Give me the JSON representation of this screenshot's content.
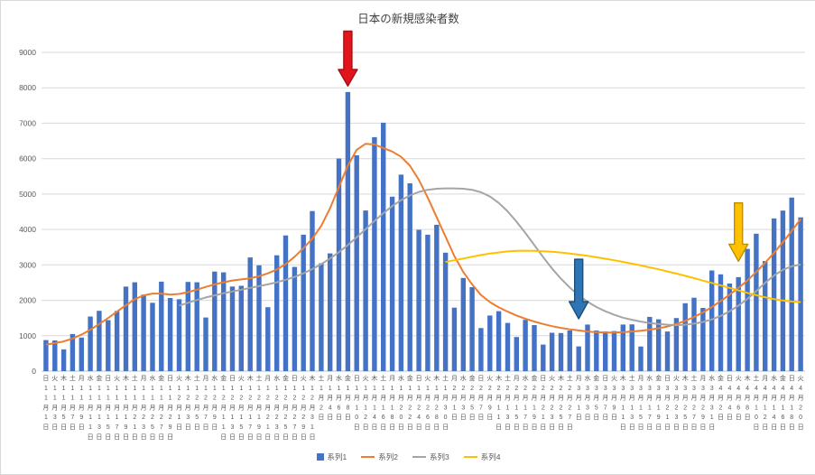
{
  "title": "日本の新規感染者数",
  "colors": {
    "bar": "#4472C4",
    "series2": "#ED7D31",
    "series3": "#A5A5A5",
    "series4": "#FFC000",
    "grid": "#D9D9D9",
    "axis_line": "#BFBFBF",
    "text": "#595959",
    "title_text": "#404040"
  },
  "y_axis": {
    "min": 0,
    "max": 9000,
    "step": 1000,
    "ticks": [
      "0",
      "1000",
      "2000",
      "3000",
      "4000",
      "5000",
      "6000",
      "7000",
      "8000",
      "9000"
    ]
  },
  "legend": {
    "items": [
      {
        "label": "系列1",
        "marker": "bar",
        "color": "#4472C4"
      },
      {
        "label": "系列2",
        "marker": "line",
        "color": "#ED7D31"
      },
      {
        "label": "系列3",
        "marker": "line",
        "color": "#A5A5A5"
      },
      {
        "label": "系列4",
        "marker": "line",
        "color": "#FFC000"
      }
    ]
  },
  "chart_data": {
    "type": "combo-bar-line",
    "title": "日本の新規感染者数",
    "ylim": [
      0,
      9000
    ],
    "grid": true,
    "legend_position": "bottom",
    "categories": [
      "日 11月1日",
      "火 11月3日",
      "木 11月5日",
      "土 11月7日",
      "月 11月9日",
      "水 11月11日",
      "金 11月13日",
      "日 11月15日",
      "火 11月17日",
      "木 11月19日",
      "土 11月21日",
      "月 11月23日",
      "水 11月25日",
      "金 11月27日",
      "日 11月29日",
      "火 12月1日",
      "木 12月3日",
      "土 12月5日",
      "月 12月7日",
      "水 12月9日",
      "金 12月11日",
      "日 12月13日",
      "火 12月15日",
      "木 12月17日",
      "土 12月19日",
      "月 12月21日",
      "水 12月23日",
      "金 12月25日",
      "日 12月27日",
      "火 12月29日",
      "木 12月31日",
      "土 1月2日",
      "月 1月4日",
      "水 1月6日",
      "金 1月8日",
      "日 1月10日",
      "火 1月12日",
      "木 1月14日",
      "土 1月16日",
      "月 1月18日",
      "水 1月20日",
      "金 1月22日",
      "日 1月24日",
      "火 1月26日",
      "木 1月28日",
      "土 1月30日",
      "月 2月1日",
      "水 2月3日",
      "金 2月5日",
      "日 2月7日",
      "火 2月9日",
      "木 2月11日",
      "土 2月13日",
      "月 2月15日",
      "水 2月17日",
      "金 2月19日",
      "日 2月21日",
      "火 2月23日",
      "木 2月25日",
      "土 2月27日",
      "月 3月1日",
      "水 3月3日",
      "金 3月5日",
      "日 3月7日",
      "火 3月9日",
      "木 3月11日",
      "土 3月13日",
      "月 3月15日",
      "水 3月17日",
      "金 3月19日",
      "日 3月21日",
      "火 3月23日",
      "木 3月25日",
      "土 3月27日",
      "月 3月29日",
      "水 3月31日",
      "金 4月2日",
      "日 4月4日",
      "火 4月6日",
      "木 4月8日",
      "土 4月10日",
      "月 4月12日",
      "水 4月14日",
      "金 4月16日",
      "日 4月18日",
      "火 4月20日"
    ],
    "series": [
      {
        "name": "系列1",
        "type": "bar",
        "color": "#4472C4",
        "values": [
          877,
          867,
          614,
          1049,
          948,
          1543,
          1704,
          1441,
          1698,
          2386,
          2508,
          2159,
          1930,
          2527,
          2066,
          2030,
          2518,
          2508,
          1514,
          2812,
          2790,
          2388,
          2410,
          3211,
          2988,
          1806,
          3271,
          3832,
          2941,
          3853,
          4520,
          3044,
          3325,
          6004,
          7882,
          6093,
          4536,
          6607,
          7014,
          4925,
          5549,
          5303,
          3990,
          3853,
          4133,
          3344,
          1792,
          2631,
          2371,
          1216,
          1570,
          1693,
          1362,
          965,
          1448,
          1301,
          750,
          1084,
          1076,
          1148,
          698,
          1316,
          1148,
          1121,
          1133,
          1316,
          1320,
          695,
          1533,
          1463,
          1120,
          1500,
          1917,
          2072,
          1785,
          2843,
          2732,
          2472,
          2654,
          3451,
          3881,
          3108,
          4312,
          4532,
          4901,
          4342
        ]
      },
      {
        "name": "系列2",
        "type": "line",
        "color": "#ED7D31",
        "values": [
          750,
          790,
          840,
          920,
          1030,
          1170,
          1330,
          1500,
          1680,
          1860,
          2030,
          2140,
          2190,
          2190,
          2160,
          2180,
          2230,
          2300,
          2380,
          2450,
          2510,
          2560,
          2590,
          2620,
          2680,
          2760,
          2870,
          3020,
          3230,
          3470,
          3740,
          4100,
          4600,
          5200,
          5800,
          6250,
          6420,
          6400,
          6300,
          6200,
          6050,
          5800,
          5400,
          4900,
          4350,
          3800,
          3250,
          2800,
          2450,
          2150,
          1950,
          1800,
          1680,
          1570,
          1480,
          1400,
          1330,
          1270,
          1220,
          1180,
          1150,
          1120,
          1100,
          1090,
          1090,
          1100,
          1120,
          1140,
          1170,
          1210,
          1260,
          1330,
          1420,
          1530,
          1660,
          1810,
          1980,
          2160,
          2350,
          2560,
          2800,
          3060,
          3340,
          3640,
          3960,
          4290
        ]
      },
      {
        "name": "系列3",
        "type": "line",
        "color": "#A5A5A5",
        "values": [
          null,
          null,
          null,
          null,
          null,
          null,
          null,
          null,
          null,
          null,
          null,
          null,
          null,
          null,
          null,
          1850,
          1930,
          2010,
          2080,
          2140,
          2200,
          2250,
          2300,
          2350,
          2400,
          2450,
          2510,
          2580,
          2660,
          2760,
          2880,
          3020,
          3180,
          3360,
          3560,
          3780,
          4010,
          4240,
          4460,
          4660,
          4830,
          4960,
          5060,
          5120,
          5150,
          5160,
          5160,
          5150,
          5120,
          5050,
          4930,
          4750,
          4510,
          4220,
          3900,
          3560,
          3220,
          2900,
          2610,
          2360,
          2140,
          1960,
          1810,
          1690,
          1590,
          1510,
          1450,
          1400,
          1360,
          1330,
          1310,
          1300,
          1310,
          1340,
          1390,
          1460,
          1560,
          1690,
          1850,
          2040,
          2260,
          2490,
          2700,
          2860,
          2960,
          3010
        ]
      },
      {
        "name": "系列4",
        "type": "line",
        "color": "#FFC000",
        "values": [
          null,
          null,
          null,
          null,
          null,
          null,
          null,
          null,
          null,
          null,
          null,
          null,
          null,
          null,
          null,
          null,
          null,
          null,
          null,
          null,
          null,
          null,
          null,
          null,
          null,
          null,
          null,
          null,
          null,
          null,
          null,
          null,
          null,
          null,
          null,
          null,
          null,
          null,
          null,
          null,
          null,
          null,
          null,
          null,
          null,
          3080,
          3130,
          3180,
          3230,
          3280,
          3320,
          3350,
          3380,
          3395,
          3400,
          3395,
          3385,
          3370,
          3350,
          3320,
          3290,
          3255,
          3215,
          3175,
          3130,
          3085,
          3035,
          2985,
          2930,
          2875,
          2815,
          2755,
          2690,
          2625,
          2555,
          2490,
          2420,
          2350,
          2280,
          2210,
          2145,
          2085,
          2035,
          1995,
          1965,
          1950
        ]
      }
    ],
    "annotations": [
      {
        "name": "red-down-arrow",
        "shape": "down-block-arrow",
        "x_index": 34,
        "v_top": 9600,
        "v_tip": 8050,
        "fill": "#E0161C",
        "stroke": "#A01015"
      },
      {
        "name": "blue-down-arrow",
        "shape": "down-block-arrow",
        "x_index": 60,
        "v_top": 3160,
        "v_tip": 1480,
        "fill": "#2E75B6",
        "stroke": "#1F4E79"
      },
      {
        "name": "gold-down-arrow",
        "shape": "down-block-arrow",
        "x_index": 78,
        "v_top": 4750,
        "v_tip": 3100,
        "fill": "#FFC000",
        "stroke": "#BF8F00"
      }
    ]
  }
}
